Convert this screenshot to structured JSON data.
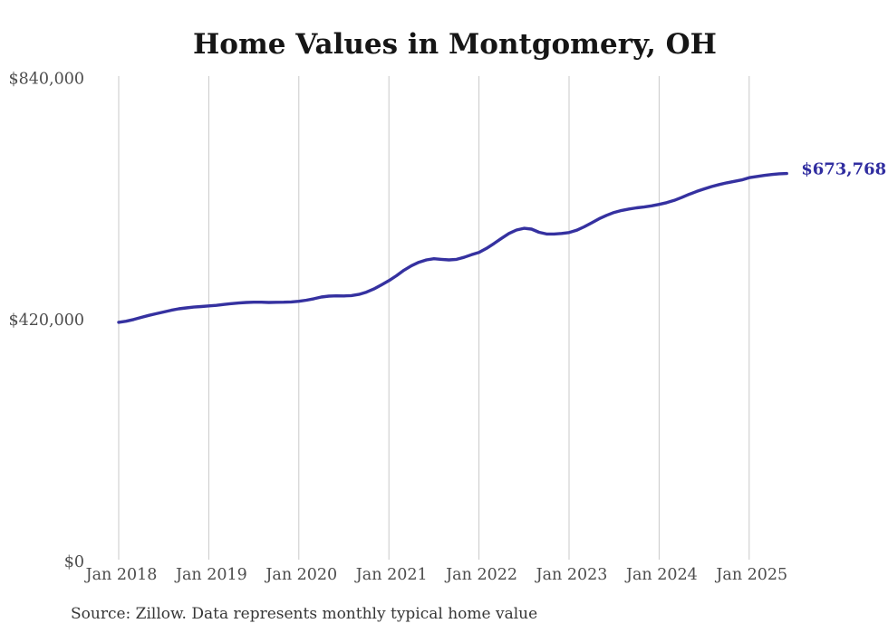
{
  "source_note": "Source: Zillow. Data represents monthly typical home value",
  "colors": {
    "line": "#3531a0",
    "end_label": "#302da0",
    "grid": "#c9c9c9",
    "axis_text": "#4d4d4d",
    "title_text": "#161616",
    "source_text": "#363636",
    "background": "#ffffff"
  },
  "chart_data": {
    "type": "line",
    "title": "Home Values in Montgomery, OH",
    "xlabel": "",
    "ylabel": "",
    "ylim": [
      0,
      840000
    ],
    "grid": "vertical-yearly-gridlines",
    "legend": "none",
    "x_ticks": [
      "Jan 2018",
      "Jan 2019",
      "Jan 2020",
      "Jan 2021",
      "Jan 2022",
      "Jan 2023",
      "Jan 2024",
      "Jan 2025"
    ],
    "y_ticks": [
      {
        "label": "$0",
        "value": 0
      },
      {
        "label": "$420,000",
        "value": 420000
      },
      {
        "label": "$840,000",
        "value": 840000
      }
    ],
    "end_label": "$673,768",
    "end_value": 673768,
    "series": [
      {
        "name": "Monthly typical home value",
        "start_month": "2018-01",
        "end_month": "2025-06",
        "values": [
          415000,
          417000,
          420000,
          423500,
          427000,
          430000,
          433000,
          436000,
          438500,
          440000,
          441500,
          442500,
          443500,
          444500,
          446000,
          447500,
          448500,
          449500,
          450000,
          450000,
          449500,
          449800,
          450000,
          450500,
          451500,
          453500,
          456000,
          459000,
          460500,
          461000,
          460800,
          461500,
          463500,
          467500,
          473000,
          480000,
          487500,
          496000,
          505500,
          513500,
          519500,
          523500,
          525500,
          524500,
          523500,
          524500,
          528000,
          532500,
          536500,
          543500,
          552000,
          561000,
          569500,
          575500,
          578500,
          577000,
          571500,
          568500,
          568500,
          569500,
          571000,
          575000,
          581000,
          588000,
          595000,
          601000,
          606000,
          609500,
          612000,
          614000,
          615500,
          617500,
          620000,
          623000,
          627000,
          632000,
          637500,
          642500,
          647000,
          651000,
          654500,
          657500,
          660000,
          662500,
          666500,
          668500,
          670500,
          672000,
          673200,
          673768
        ]
      }
    ]
  }
}
